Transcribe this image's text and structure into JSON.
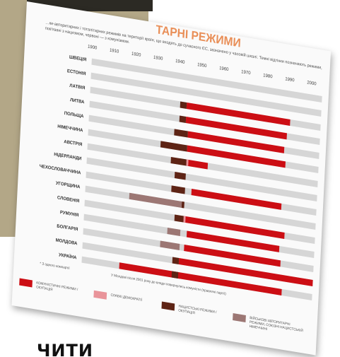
{
  "sheet": {
    "title": "ТАРНІ РЕЖИМИ",
    "subtitle": "…ки-авторитарних і тоталітарних режимів на території країн, що входять до сучасного ЄС, зазначено у часовій шкалі. Темні відтінки позначають режими, пов'язані з нацизмом, червоні — з комунізмом."
  },
  "colors": {
    "communist": "#cc0e14",
    "fascist_occupation": "#5e2415",
    "authoritarian": "#9c7774",
    "fragile_democracy": "#e9949a",
    "track": "#d6d6d6"
  },
  "legend": [
    {
      "label": "КОМУНІСТИЧНІ РЕЖИМИ / ОКУПАЦІЯ",
      "color_key": "communist"
    },
    {
      "label": "СЛАБКІ ДЕМОКРАТІЇ",
      "color_key": "fragile_democracy"
    },
    {
      "label": "НАЦИСТСЬКІ РЕЖИМИ / ОКУПАЦІЯ",
      "color_key": "fascist_occupation"
    },
    {
      "label": "ВІЙСЬКОВІ АВТОРИТАРНІ РЕЖИМИ, СОЮЗНІ НАЦИСТСЬКІЙ НІМЕЧЧИНІ",
      "color_key": "authoritarian"
    }
  ],
  "footnotes": {
    "note1": "* З одного компартії",
    "note2": "У Молдові після 2001 року до влади повернулись комуністи (правлячі партії)"
  },
  "bottom_text": "ЧИТИ",
  "chart_data": {
    "type": "bar",
    "title": "ТАРНІ РЕЖИМИ",
    "x": [
      1900,
      1910,
      1920,
      1930,
      1940,
      1950,
      1960,
      1970,
      1980,
      1990,
      2000
    ],
    "xlim": [
      1900,
      2005
    ],
    "categories": [
      "ШВЕЦІЯ",
      "ЕСТОНІЯ",
      "ЛАТВІЯ",
      "ЛИТВА",
      "ПОЛЬЩА",
      "НІМЕЧЧИНА",
      "АВСТРІЯ",
      "НІДЕРЛАНДИ",
      "ЧЕХОСЛОВАЧЧИНА",
      "УГОРЩИНА",
      "СЛОВЕНІЯ",
      "РУМУНІЯ",
      "БОЛГАРІЯ",
      "МОЛДОВА",
      "УКРАЇНА"
    ],
    "series": [
      {
        "name": "КОМУНІСТИЧНІ РЕЖИМИ / ОКУПАЦІЯ",
        "color_key": "communist",
        "ranges": [
          null,
          null,
          [
            1944,
            1991
          ],
          [
            1944,
            1990
          ],
          [
            1945,
            1989
          ],
          [
            1945,
            1990
          ],
          [
            1945,
            1955
          ],
          null,
          [
            1948,
            1989
          ],
          null,
          [
            1945,
            1991
          ],
          [
            1947,
            1989
          ],
          [
            1946,
            1990
          ],
          [
            1944,
            2005
          ],
          [
            1917,
            1991
          ]
        ]
      },
      {
        "name": "НАЦИСТСЬКІ РЕЖИМИ / ОКУПАЦІЯ",
        "color_key": "fascist_occupation",
        "ranges": [
          null,
          null,
          [
            1941,
            1944
          ],
          [
            1941,
            1944
          ],
          [
            1939,
            1945
          ],
          [
            1933,
            1945
          ],
          [
            1938,
            1945
          ],
          [
            1940,
            1945
          ],
          [
            1939,
            1945
          ],
          [
            1944,
            1945
          ],
          [
            1941,
            1945
          ],
          null,
          null,
          [
            1941,
            1944
          ],
          [
            1941,
            1944
          ]
        ]
      },
      {
        "name": "ВІЙСЬКОВІ АВТОРИТАРНІ РЕЖИМИ, СОЮЗНІ НАЦИСТСЬКІЙ НІМЕЧЧИНІ",
        "color_key": "authoritarian",
        "ranges": [
          null,
          null,
          null,
          null,
          null,
          null,
          null,
          null,
          null,
          [
            1920,
            1944
          ],
          null,
          [
            1938,
            1944
          ],
          [
            1935,
            1944
          ],
          null,
          null
        ]
      },
      {
        "name": "СЛАБКІ ДЕМОКРАТІЇ",
        "color_key": "fragile_democracy",
        "ranges": [
          null,
          null,
          null,
          null,
          null,
          null,
          [
            1945,
            1946
          ],
          null,
          null,
          null,
          [
            1945,
            1946
          ],
          null,
          null,
          null,
          null
        ]
      }
    ]
  }
}
